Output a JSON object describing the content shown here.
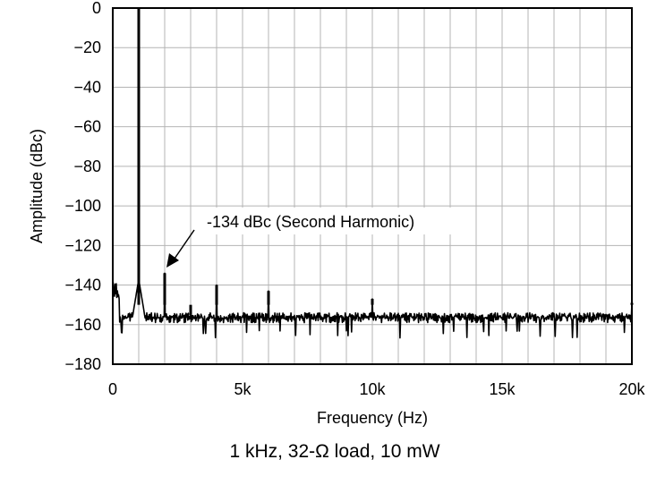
{
  "chart_data": {
    "type": "line",
    "xlabel": "Frequency (Hz)",
    "ylabel": "Amplitude (dBc)",
    "caption": "1 kHz, 32-Ω load, 10 mW",
    "xlim": [
      0,
      20000
    ],
    "ylim": [
      -180,
      0
    ],
    "x_ticks": [
      0,
      5000,
      10000,
      15000,
      20000
    ],
    "x_tick_labels": [
      "0",
      "5k",
      "10k",
      "15k",
      "20k"
    ],
    "y_ticks": [
      0,
      -20,
      -40,
      -60,
      -80,
      -100,
      -120,
      -140,
      -160,
      -180
    ],
    "y_tick_labels": [
      "0",
      "−20",
      "−40",
      "−60",
      "−80",
      "−100",
      "−120",
      "−140",
      "−160",
      "−180"
    ],
    "grid": true,
    "minor_x_grid_step": 1000,
    "noise_floor": {
      "min": -160,
      "max": -150
    },
    "peaks": [
      {
        "x": 1000,
        "y": 0
      },
      {
        "x": 2000,
        "y": -134
      },
      {
        "x": 3000,
        "y": -155
      },
      {
        "x": 4000,
        "y": -140
      },
      {
        "x": 6000,
        "y": -143
      },
      {
        "x": 10000,
        "y": -147
      },
      {
        "x": 20000,
        "y": -149
      }
    ],
    "annotation": {
      "text": "-134 dBc (Second Harmonic)",
      "x": 2000,
      "y": -134
    },
    "line_color": "#000000"
  }
}
